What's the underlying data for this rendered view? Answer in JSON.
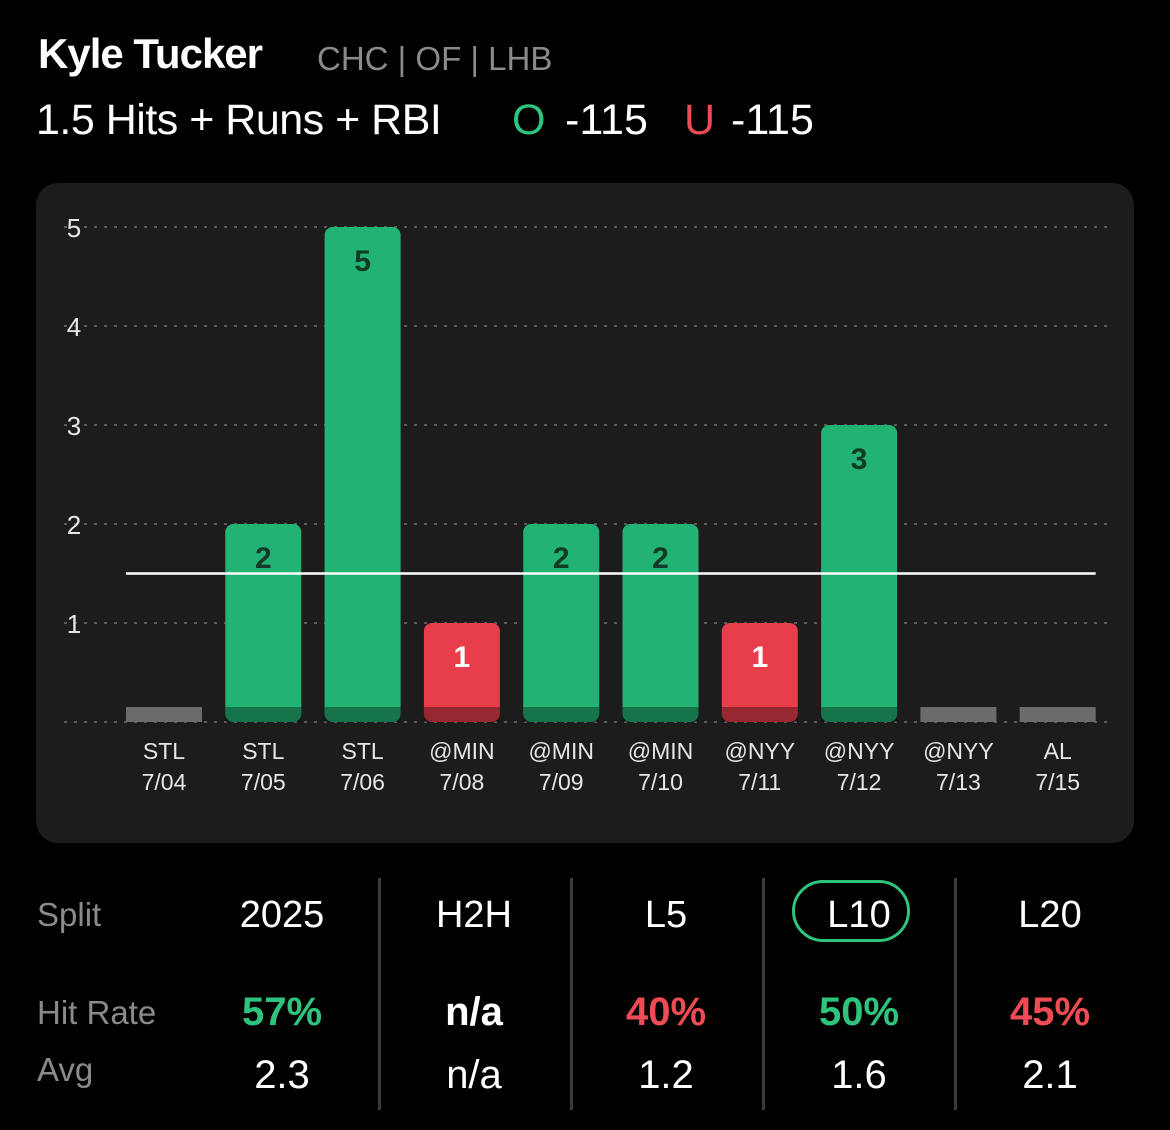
{
  "player": {
    "name": "Kyle Tucker",
    "meta": "CHC | OF | LHB"
  },
  "prop": {
    "line": "1.5 Hits + Runs + RBI",
    "over_label": "O",
    "over_odds": "-115",
    "under_label": "U",
    "under_odds": "-115"
  },
  "colors": {
    "over": "#2ec47d",
    "under": "#ee4b55",
    "bar_green": "#22b274",
    "bar_red": "#e83d4b",
    "bar_zero": "#6b6b6b",
    "panel": "#1c1c1c"
  },
  "chart_data": {
    "type": "bar",
    "categories": [
      [
        "STL",
        "7/04"
      ],
      [
        "STL",
        "7/05"
      ],
      [
        "STL",
        "7/06"
      ],
      [
        "@MIN",
        "7/08"
      ],
      [
        "@MIN",
        "7/09"
      ],
      [
        "@MIN",
        "7/10"
      ],
      [
        "@NYY",
        "7/11"
      ],
      [
        "@NYY",
        "7/12"
      ],
      [
        "@NYY",
        "7/13"
      ],
      [
        "AL",
        "7/15"
      ]
    ],
    "values": [
      0,
      2,
      5,
      1,
      2,
      2,
      1,
      3,
      0,
      0
    ],
    "line": 1.5,
    "yticks": [
      1,
      2,
      3,
      4,
      5
    ],
    "ylim": [
      0,
      5
    ],
    "grid": true
  },
  "stats": {
    "row_labels": {
      "split": "Split",
      "hit_rate": "Hit Rate",
      "avg": "Avg"
    },
    "selected": "L10",
    "columns": [
      {
        "split": "2025",
        "hit_rate": "57%",
        "avg": "2.3",
        "tone": "over"
      },
      {
        "split": "H2H",
        "hit_rate": "n/a",
        "avg": "n/a",
        "tone": "neutral"
      },
      {
        "split": "L5",
        "hit_rate": "40%",
        "avg": "1.2",
        "tone": "under"
      },
      {
        "split": "L10",
        "hit_rate": "50%",
        "avg": "1.6",
        "tone": "over"
      },
      {
        "split": "L20",
        "hit_rate": "45%",
        "avg": "2.1",
        "tone": "under"
      }
    ]
  }
}
